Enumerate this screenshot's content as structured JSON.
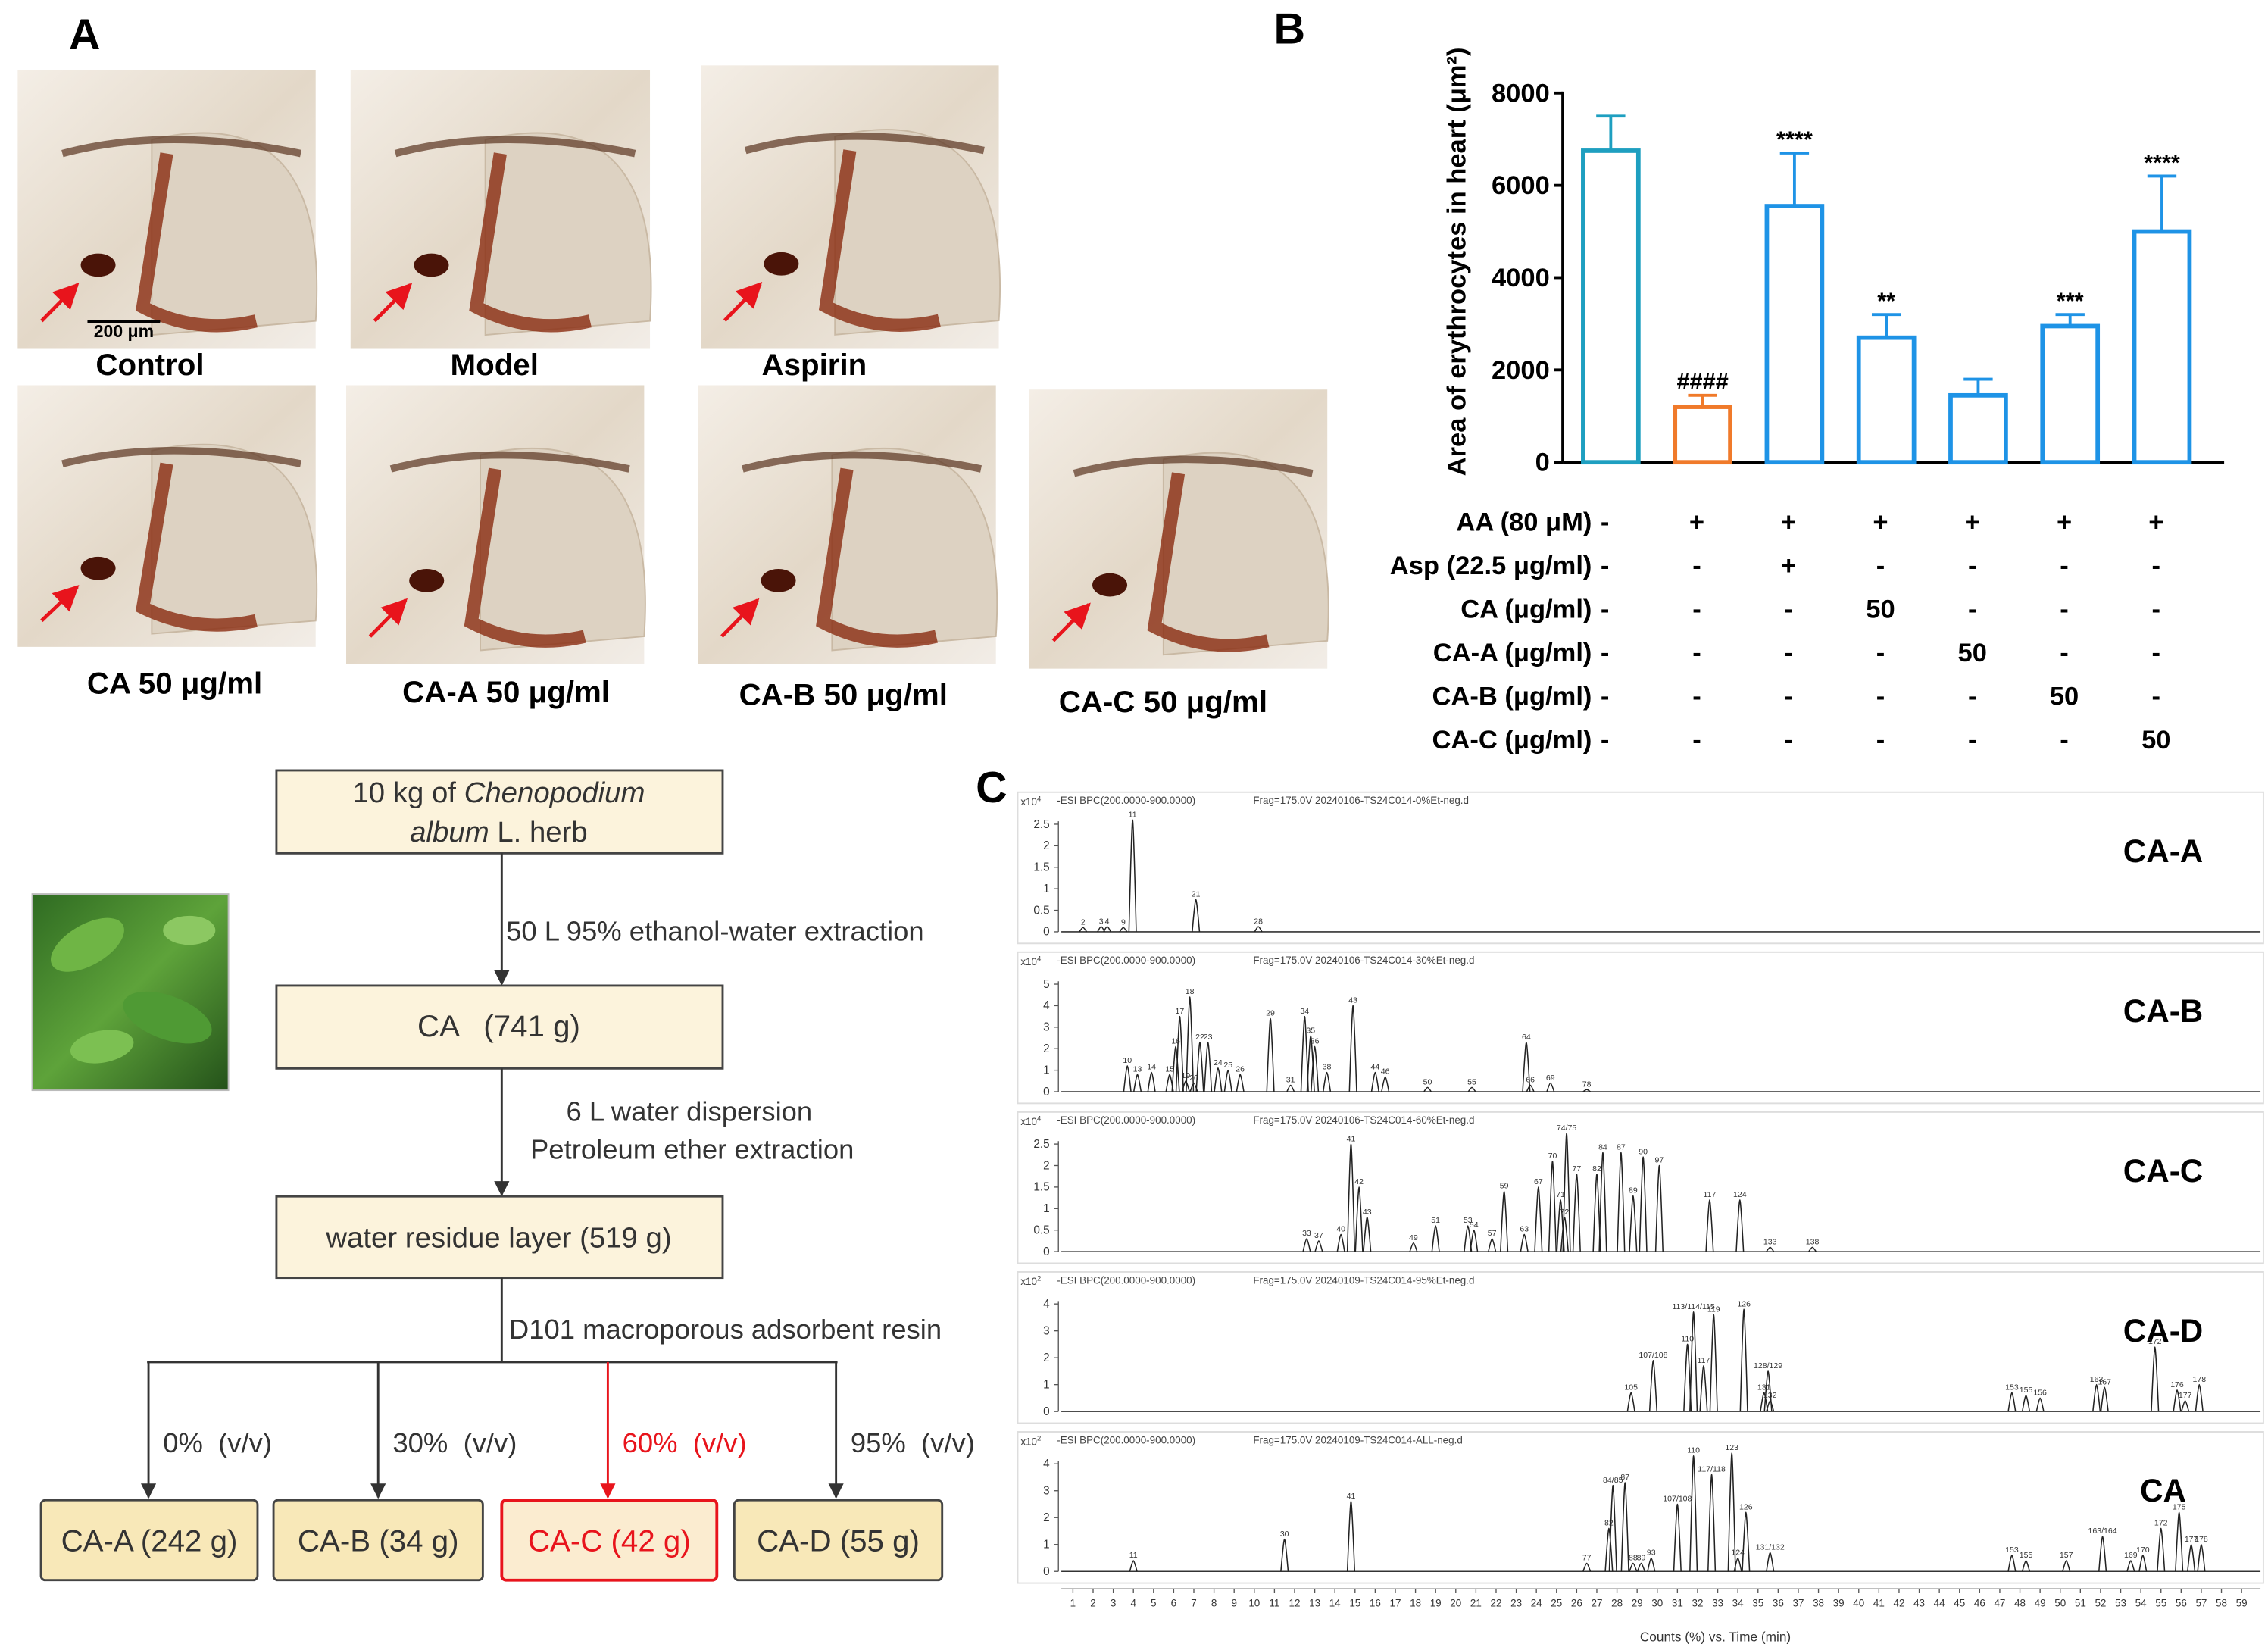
{
  "panel_labels": [
    "A",
    "B",
    "C"
  ],
  "panel_a": {
    "scale_bar": "200 μm",
    "images": [
      {
        "caption": "Control"
      },
      {
        "caption": "Model"
      },
      {
        "caption": "Aspirin"
      },
      {
        "caption": "CA 50 μg/ml"
      },
      {
        "caption": "CA-A 50 μg/ml"
      },
      {
        "caption": "CA-B 50 μg/ml"
      },
      {
        "caption": "CA-C 50 μg/ml"
      }
    ]
  },
  "chart_data": {
    "type": "bar",
    "ylabel": "Area of erythrocytes in heart (μm²)",
    "values": [
      6750,
      1200,
      5550,
      2700,
      1450,
      2950,
      5000
    ],
    "errors": [
      750,
      250,
      1150,
      500,
      350,
      250,
      1200
    ],
    "annotations": [
      null,
      "####",
      "****",
      "**",
      null,
      "***",
      "****"
    ],
    "colors": [
      "#1e9fc0",
      "#f07a2a",
      "#1e93e6",
      "#1e93e6",
      "#1e93e6",
      "#1e93e6",
      "#1e93e6"
    ],
    "ylim": [
      0,
      8000
    ],
    "yticks": [
      0,
      2000,
      4000,
      6000,
      8000
    ],
    "treatments": [
      {
        "label": "AA (80 μM)",
        "values": [
          "-",
          "+",
          "+",
          "+",
          "+",
          "+",
          "+"
        ]
      },
      {
        "label": "Asp (22.5 μg/ml)",
        "values": [
          "-",
          "-",
          "+",
          "-",
          "-",
          "-",
          "-"
        ]
      },
      {
        "label": "CA (μg/ml)",
        "values": [
          "-",
          "-",
          "-",
          "50",
          "-",
          "-",
          "-"
        ]
      },
      {
        "label": "CA-A (μg/ml)",
        "values": [
          "-",
          "-",
          "-",
          "-",
          "50",
          "-",
          "-"
        ]
      },
      {
        "label": "CA-B (μg/ml)",
        "values": [
          "-",
          "-",
          "-",
          "-",
          "-",
          "50",
          "-"
        ]
      },
      {
        "label": "CA-C (μg/ml)",
        "values": [
          "-",
          "-",
          "-",
          "-",
          "-",
          "-",
          "50"
        ]
      }
    ]
  },
  "flowchart": {
    "source": {
      "line1": [
        "10 kg of ",
        "Chenopodium"
      ],
      "line2": [
        "album",
        " L. herb"
      ]
    },
    "boxes": [
      "CA   (741 g)",
      "water residue layer (519 g)"
    ],
    "steps": [
      "50 L 95% ethanol-water extraction",
      "6 L water dispersion",
      "Petroleum ether extraction",
      "D101 macroporous adsorbent resin"
    ],
    "fractions": [
      {
        "eluent": "0%  (v/v)",
        "product": "CA-A (242 g)"
      },
      {
        "eluent": "30%  (v/v)",
        "product": "CA-B (34 g)"
      },
      {
        "eluent": "60%  (v/v)",
        "product": "CA-C (42 g)"
      },
      {
        "eluent": "95%  (v/v)",
        "product": "CA-D (55 g)"
      }
    ]
  },
  "chromatograms": {
    "xlabel": "Counts (%) vs. Time (min)",
    "xlim": [
      1,
      59
    ],
    "xticks": [
      1,
      2,
      3,
      4,
      5,
      6,
      7,
      8,
      9,
      10,
      11,
      12,
      13,
      14,
      15,
      16,
      17,
      18,
      19,
      20,
      21,
      22,
      23,
      24,
      25,
      26,
      27,
      28,
      29,
      30,
      31,
      32,
      33,
      34,
      35,
      36,
      37,
      38,
      39,
      40,
      41,
      42,
      43,
      44,
      45,
      46,
      47,
      48,
      49,
      50,
      51,
      52,
      53,
      54,
      55,
      56,
      57,
      58,
      59
    ],
    "traces": [
      {
        "name": "CA-A",
        "scale": "x10",
        "scale_exp": "4",
        "mode": "-ESI BPC(200.0000-900.0000)",
        "file": "Frag=175.0V 20240106-TS24C014-0%Et-neg.d",
        "ylim": [
          0,
          2.5
        ],
        "yticks": [
          0,
          0.5,
          1,
          1.5,
          2,
          2.5
        ],
        "peaks": [
          {
            "label": "2",
            "t": 1.5,
            "h": 0.1
          },
          {
            "label": "3",
            "t": 2.4,
            "h": 0.12
          },
          {
            "label": "4",
            "t": 2.7,
            "h": 0.12
          },
          {
            "label": "9",
            "t": 3.5,
            "h": 0.1
          },
          {
            "label": "11",
            "t": 3.96,
            "h": 2.6
          },
          {
            "label": "21",
            "t": 7.1,
            "h": 0.75
          },
          {
            "label": "28",
            "t": 10.2,
            "h": 0.12
          }
        ]
      },
      {
        "name": "CA-B",
        "scale": "x10",
        "scale_exp": "4",
        "mode": "-ESI BPC(200.0000-900.0000)",
        "file": "Frag=175.0V 20240106-TS24C014-30%Et-neg.d",
        "ylim": [
          0,
          5
        ],
        "yticks": [
          0,
          1,
          2,
          3,
          4,
          5
        ],
        "peaks": [
          {
            "label": "10",
            "t": 3.7,
            "h": 1.2
          },
          {
            "label": "13",
            "t": 4.2,
            "h": 0.8
          },
          {
            "label": "14",
            "t": 4.9,
            "h": 0.9
          },
          {
            "label": "15",
            "t": 5.8,
            "h": 0.8
          },
          {
            "label": "16",
            "t": 6.1,
            "h": 2.1
          },
          {
            "label": "17",
            "t": 6.3,
            "h": 3.5
          },
          {
            "label": "18",
            "t": 6.8,
            "h": 4.4
          },
          {
            "label": "19",
            "t": 6.6,
            "h": 0.5
          },
          {
            "label": "20",
            "t": 7.0,
            "h": 0.4
          },
          {
            "label": "22",
            "t": 7.3,
            "h": 2.3
          },
          {
            "label": "23",
            "t": 7.7,
            "h": 2.3
          },
          {
            "label": "24",
            "t": 8.2,
            "h": 1.1
          },
          {
            "label": "25",
            "t": 8.7,
            "h": 1.0
          },
          {
            "label": "26",
            "t": 9.3,
            "h": 0.8
          },
          {
            "label": "29",
            "t": 10.8,
            "h": 3.4
          },
          {
            "label": "31",
            "t": 11.8,
            "h": 0.3
          },
          {
            "label": "34",
            "t": 12.5,
            "h": 3.5
          },
          {
            "label": "35",
            "t": 12.8,
            "h": 2.6
          },
          {
            "label": "36",
            "t": 13.0,
            "h": 2.1
          },
          {
            "label": "38",
            "t": 13.6,
            "h": 0.9
          },
          {
            "label": "43",
            "t": 14.9,
            "h": 4.0
          },
          {
            "label": "44",
            "t": 16.0,
            "h": 0.9
          },
          {
            "label": "46",
            "t": 16.5,
            "h": 0.7
          },
          {
            "label": "50",
            "t": 18.6,
            "h": 0.2
          },
          {
            "label": "55",
            "t": 20.8,
            "h": 0.2
          },
          {
            "label": "64",
            "t": 23.5,
            "h": 2.3
          },
          {
            "label": "66",
            "t": 23.7,
            "h": 0.3
          },
          {
            "label": "69",
            "t": 24.7,
            "h": 0.4
          },
          {
            "label": "78",
            "t": 26.5,
            "h": 0.1
          }
        ]
      },
      {
        "name": "CA-C",
        "scale": "x10",
        "scale_exp": "4",
        "mode": "-ESI BPC(200.0000-900.0000)",
        "file": "Frag=175.0V 20240106-TS24C014-60%Et-neg.d",
        "ylim": [
          0,
          2.5
        ],
        "yticks": [
          0,
          0.5,
          1,
          1.5,
          2,
          2.5
        ],
        "peaks": [
          {
            "label": "33",
            "t": 12.6,
            "h": 0.3
          },
          {
            "label": "37",
            "t": 13.2,
            "h": 0.25
          },
          {
            "label": "40",
            "t": 14.3,
            "h": 0.4
          },
          {
            "label": "41",
            "t": 14.8,
            "h": 2.5
          },
          {
            "label": "42",
            "t": 15.2,
            "h": 1.5
          },
          {
            "label": "43",
            "t": 15.6,
            "h": 0.8
          },
          {
            "label": "49",
            "t": 17.9,
            "h": 0.2
          },
          {
            "label": "51",
            "t": 19.0,
            "h": 0.6
          },
          {
            "label": "53",
            "t": 20.6,
            "h": 0.6
          },
          {
            "label": "54",
            "t": 20.9,
            "h": 0.5
          },
          {
            "label": "57",
            "t": 21.8,
            "h": 0.3
          },
          {
            "label": "59",
            "t": 22.4,
            "h": 1.4
          },
          {
            "label": "63",
            "t": 23.4,
            "h": 0.4
          },
          {
            "label": "67",
            "t": 24.1,
            "h": 1.5
          },
          {
            "label": "70",
            "t": 24.8,
            "h": 2.1
          },
          {
            "label": "71",
            "t": 25.2,
            "h": 1.2
          },
          {
            "label": "72",
            "t": 25.4,
            "h": 0.8
          },
          {
            "label": "74/75",
            "t": 25.5,
            "h": 2.75
          },
          {
            "label": "77",
            "t": 26.0,
            "h": 1.8
          },
          {
            "label": "82",
            "t": 27.0,
            "h": 1.8
          },
          {
            "label": "84",
            "t": 27.3,
            "h": 2.3
          },
          {
            "label": "87",
            "t": 28.2,
            "h": 2.3
          },
          {
            "label": "89",
            "t": 28.8,
            "h": 1.3
          },
          {
            "label": "90",
            "t": 29.3,
            "h": 2.2
          },
          {
            "label": "97",
            "t": 30.1,
            "h": 2.0
          },
          {
            "label": "117",
            "t": 32.6,
            "h": 1.2
          },
          {
            "label": "124",
            "t": 34.1,
            "h": 1.2
          },
          {
            "label": "133",
            "t": 35.6,
            "h": 0.1
          },
          {
            "label": "138",
            "t": 37.7,
            "h": 0.1
          }
        ]
      },
      {
        "name": "CA-D",
        "scale": "x10",
        "scale_exp": "2",
        "mode": "-ESI BPC(200.0000-900.0000)",
        "file": "Frag=175.0V 20240109-TS24C014-95%Et-neg.d",
        "ylim": [
          0,
          4
        ],
        "yticks": [
          0,
          1,
          2,
          3,
          4
        ],
        "peaks": [
          {
            "label": "105",
            "t": 28.7,
            "h": 0.7
          },
          {
            "label": "107/108",
            "t": 29.8,
            "h": 1.9
          },
          {
            "label": "110",
            "t": 31.5,
            "h": 2.5
          },
          {
            "label": "113/114/115",
            "t": 31.8,
            "h": 3.7
          },
          {
            "label": "117",
            "t": 32.3,
            "h": 1.7
          },
          {
            "label": "119",
            "t": 32.8,
            "h": 3.6
          },
          {
            "label": "126",
            "t": 34.3,
            "h": 3.8
          },
          {
            "label": "131",
            "t": 35.3,
            "h": 0.7
          },
          {
            "label": "128/129",
            "t": 35.5,
            "h": 1.5
          },
          {
            "label": "132",
            "t": 35.6,
            "h": 0.4
          },
          {
            "label": "153",
            "t": 47.6,
            "h": 0.7
          },
          {
            "label": "155",
            "t": 48.3,
            "h": 0.6
          },
          {
            "label": "156",
            "t": 49.0,
            "h": 0.5
          },
          {
            "label": "163",
            "t": 51.8,
            "h": 1.0
          },
          {
            "label": "167",
            "t": 52.2,
            "h": 0.9
          },
          {
            "label": "172",
            "t": 54.7,
            "h": 2.4
          },
          {
            "label": "176",
            "t": 55.8,
            "h": 0.8
          },
          {
            "label": "177",
            "t": 56.2,
            "h": 0.4
          },
          {
            "label": "178",
            "t": 56.9,
            "h": 1.0
          }
        ]
      },
      {
        "name": "CA",
        "scale": "x10",
        "scale_exp": "2",
        "mode": "-ESI BPC(200.0000-900.0000)",
        "file": "Frag=175.0V 20240109-TS24C014-ALL-neg.d",
        "ylim": [
          0,
          4
        ],
        "yticks": [
          0,
          1,
          2,
          3,
          4
        ],
        "peaks": [
          {
            "label": "11",
            "t": 4.0,
            "h": 0.4
          },
          {
            "label": "30",
            "t": 11.5,
            "h": 1.2
          },
          {
            "label": "41",
            "t": 14.8,
            "h": 2.6
          },
          {
            "label": "77",
            "t": 26.5,
            "h": 0.3
          },
          {
            "label": "82",
            "t": 27.6,
            "h": 1.6
          },
          {
            "label": "84/85",
            "t": 27.8,
            "h": 3.2
          },
          {
            "label": "87",
            "t": 28.4,
            "h": 3.3
          },
          {
            "label": "88",
            "t": 28.8,
            "h": 0.3
          },
          {
            "label": "89",
            "t": 29.2,
            "h": 0.3
          },
          {
            "label": "93",
            "t": 29.7,
            "h": 0.5
          },
          {
            "label": "107/108",
            "t": 31.0,
            "h": 2.5
          },
          {
            "label": "110",
            "t": 31.8,
            "h": 4.3
          },
          {
            "label": "117/118",
            "t": 32.7,
            "h": 3.6
          },
          {
            "label": "123",
            "t": 33.7,
            "h": 4.4
          },
          {
            "label": "124",
            "t": 34.0,
            "h": 0.5
          },
          {
            "label": "126",
            "t": 34.4,
            "h": 2.2
          },
          {
            "label": "131/132",
            "t": 35.6,
            "h": 0.7
          },
          {
            "label": "153",
            "t": 47.6,
            "h": 0.6
          },
          {
            "label": "155",
            "t": 48.3,
            "h": 0.4
          },
          {
            "label": "157",
            "t": 50.3,
            "h": 0.4
          },
          {
            "label": "163/164",
            "t": 52.1,
            "h": 1.3
          },
          {
            "label": "169",
            "t": 53.5,
            "h": 0.4
          },
          {
            "label": "170",
            "t": 54.1,
            "h": 0.6
          },
          {
            "label": "172",
            "t": 55.0,
            "h": 1.6
          },
          {
            "label": "175",
            "t": 55.9,
            "h": 2.2
          },
          {
            "label": "177",
            "t": 56.5,
            "h": 1.0
          },
          {
            "label": "178",
            "t": 57.0,
            "h": 1.0
          }
        ]
      }
    ]
  }
}
